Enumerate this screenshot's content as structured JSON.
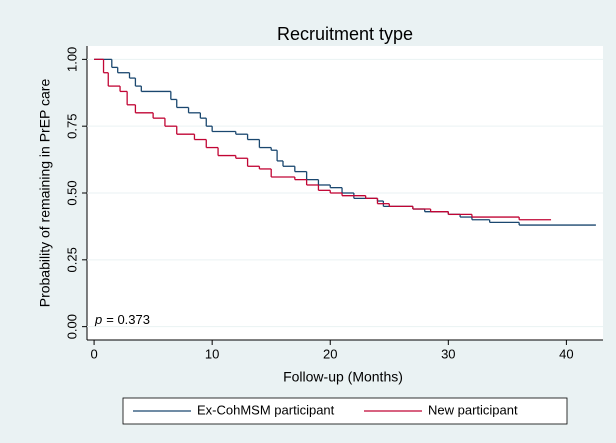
{
  "chart_data": {
    "type": "line",
    "step": "post",
    "title": "Recruitment type",
    "x_label": "Follow-up (Months)",
    "y_label": "Probability of remaining in PrEP care",
    "annotation": {
      "italic": "p",
      "text": "= 0.373"
    },
    "xlim": [
      -0.6,
      43.1
    ],
    "ylim": [
      -0.05,
      1.05
    ],
    "xticks": [
      0,
      10,
      20,
      30,
      40
    ],
    "yticks": [
      {
        "value": 0,
        "label": "0.00"
      },
      {
        "value": 0.25,
        "label": "0.25"
      },
      {
        "value": 0.5,
        "label": "0.50"
      },
      {
        "value": 0.75,
        "label": "0.75"
      },
      {
        "value": 1,
        "label": "1.00"
      }
    ],
    "grid": true,
    "legend": "bottom",
    "series": [
      {
        "name": "Ex-CohMSM participant",
        "color": "#1a476f",
        "x": [
          0,
          1.5,
          2,
          3,
          3.5,
          4,
          6.5,
          7,
          8,
          9,
          9.5,
          10,
          12,
          13,
          14,
          15,
          15.5,
          16,
          17,
          18,
          19,
          20,
          21,
          22,
          24,
          24.5,
          27,
          28,
          30,
          31,
          32,
          33.5,
          36,
          42.5
        ],
        "values": [
          1.0,
          0.97,
          0.95,
          0.93,
          0.9,
          0.88,
          0.85,
          0.82,
          0.8,
          0.78,
          0.75,
          0.73,
          0.72,
          0.7,
          0.67,
          0.66,
          0.62,
          0.6,
          0.58,
          0.55,
          0.53,
          0.52,
          0.5,
          0.48,
          0.47,
          0.45,
          0.44,
          0.43,
          0.42,
          0.41,
          0.4,
          0.39,
          0.38,
          0.38
        ]
      },
      {
        "name": "New participant",
        "color": "#c10534",
        "x": [
          0,
          0.8,
          1.2,
          2.2,
          2.8,
          3.5,
          5,
          6,
          7,
          8.5,
          9.5,
          10.5,
          12,
          13,
          14,
          15,
          17,
          18,
          19,
          20,
          21,
          23,
          24,
          25,
          27,
          28.5,
          30,
          32,
          36,
          38.7
        ],
        "values": [
          1.0,
          0.95,
          0.9,
          0.88,
          0.83,
          0.8,
          0.78,
          0.75,
          0.72,
          0.7,
          0.67,
          0.64,
          0.63,
          0.6,
          0.59,
          0.56,
          0.55,
          0.53,
          0.51,
          0.5,
          0.49,
          0.48,
          0.46,
          0.45,
          0.44,
          0.43,
          0.42,
          0.41,
          0.4,
          0.4
        ]
      }
    ]
  }
}
